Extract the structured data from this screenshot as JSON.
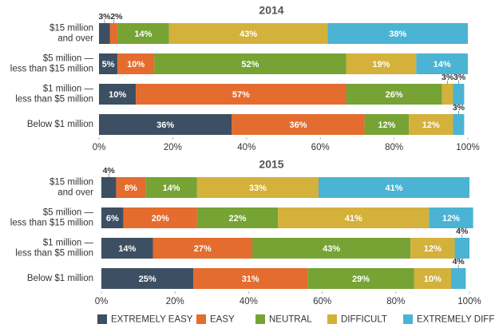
{
  "chart_data": [
    {
      "type": "stacked-barh",
      "title": "2014",
      "categories": [
        [
          "$15 million",
          "and over"
        ],
        [
          "$5 million —",
          "less than $15 million"
        ],
        [
          "$1 million —",
          "less than $5 million"
        ],
        [
          "Below $1 million"
        ]
      ],
      "series": [
        {
          "color": "#3d4f63",
          "values": [
            3,
            5,
            10,
            36
          ],
          "value_labels": [
            "3%",
            "5%",
            "10%",
            "36%"
          ]
        },
        {
          "color": "#e46c2e",
          "values": [
            2,
            10,
            57,
            36
          ],
          "value_labels": [
            "2%",
            "10%",
            "57%",
            "36%"
          ]
        },
        {
          "color": "#76a334",
          "values": [
            14,
            52,
            26,
            12
          ],
          "value_labels": [
            "14%",
            "52%",
            "26%",
            "12%"
          ]
        },
        {
          "color": "#d4b13b",
          "values": [
            43,
            19,
            3,
            12
          ],
          "value_labels": [
            "43%",
            "19%",
            "3%",
            "12%"
          ]
        },
        {
          "color": "#4bb3d3",
          "values": [
            38,
            14,
            3,
            3
          ],
          "value_labels": [
            "38%",
            "14%",
            "3%",
            "3%"
          ]
        }
      ],
      "xlim": [
        0,
        100
      ],
      "xticks": [
        {
          "value": 0,
          "label": "0%"
        },
        {
          "value": 20,
          "label": "20%"
        },
        {
          "value": 40,
          "label": "40%"
        },
        {
          "value": 60,
          "label": "60%"
        },
        {
          "value": 80,
          "label": "80%"
        },
        {
          "value": 100,
          "label": "100%"
        }
      ]
    },
    {
      "type": "stacked-barh",
      "title": "2015",
      "categories": [
        [
          "$15 million",
          "and over"
        ],
        [
          "$5 million —",
          "less than $15 million"
        ],
        [
          "$1 million —",
          "less than $5 million"
        ],
        [
          "Below $1 million"
        ]
      ],
      "series": [
        {
          "name": "EXTREMELY EASY",
          "color": "#3d4f63",
          "values": [
            4,
            6,
            14,
            25
          ],
          "value_labels": [
            "4%",
            "6%",
            "14%",
            "25%"
          ]
        },
        {
          "name": "EASY",
          "color": "#e46c2e",
          "values": [
            8,
            20,
            27,
            31
          ],
          "value_labels": [
            "8%",
            "20%",
            "27%",
            "31%"
          ]
        },
        {
          "name": "NEUTRAL",
          "color": "#76a334",
          "values": [
            14,
            22,
            43,
            29
          ],
          "value_labels": [
            "14%",
            "22%",
            "43%",
            "29%"
          ]
        },
        {
          "name": "DIFFICULT",
          "color": "#d4b13b",
          "values": [
            33,
            41,
            12,
            10
          ],
          "value_labels": [
            "33%",
            "41%",
            "12%",
            "10%"
          ]
        },
        {
          "name": "EXTREMELY DIFFICULT",
          "color": "#4bb3d3",
          "values": [
            41,
            12,
            4,
            4
          ],
          "value_labels": [
            "41%",
            "12%",
            "4%",
            "4%"
          ]
        }
      ],
      "xlim": [
        0,
        100
      ],
      "xticks": [
        {
          "value": 0,
          "label": "0%"
        },
        {
          "value": 20,
          "label": "20%"
        },
        {
          "value": 40,
          "label": "40%"
        },
        {
          "value": 60,
          "label": "60%"
        },
        {
          "value": 80,
          "label": "80%"
        },
        {
          "value": 100,
          "label": "100%"
        }
      ],
      "legend": "bottom"
    }
  ]
}
